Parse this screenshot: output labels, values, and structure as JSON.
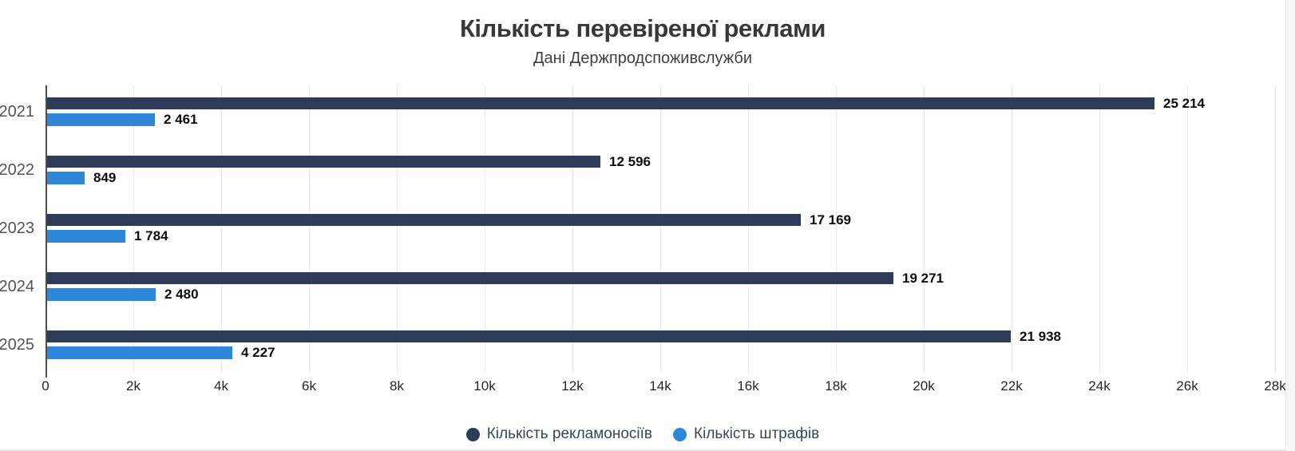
{
  "header": {
    "title": "Кількість перевіреної реклами",
    "subtitle": "Дані Держпродспоживслужби"
  },
  "chart_data": {
    "type": "bar",
    "orientation": "horizontal",
    "title": "Кількість перевіреної реклами",
    "subtitle": "Дані Держпродспоживслужби",
    "categories": [
      "2021",
      "2022",
      "2023",
      "2024",
      "2025"
    ],
    "series": [
      {
        "name": "Кількість рекламоносіїв",
        "color": "#2e3c59",
        "values": [
          25214,
          12596,
          17169,
          19271,
          21938
        ],
        "value_labels": [
          "25 214",
          "12 596",
          "17 169",
          "19 271",
          "21 938"
        ]
      },
      {
        "name": "Кількість штрафів",
        "color": "#2f87da",
        "values": [
          2461,
          849,
          1784,
          2480,
          4227
        ],
        "value_labels": [
          "2 461",
          "849",
          "1 784",
          "2 480",
          "4 227"
        ]
      }
    ],
    "xlim": [
      0,
      28000
    ],
    "x_tick_interval": 2000,
    "x_tick_labels": [
      "0",
      "2k",
      "4k",
      "6k",
      "8k",
      "10k",
      "12k",
      "14k",
      "16k",
      "18k",
      "20k",
      "22k",
      "24k",
      "26k",
      "28k"
    ],
    "grid": "vertical",
    "legend_position": "bottom"
  },
  "colors": {
    "series1": "#2e3c59",
    "series2": "#2f87da",
    "gridline": "#e8e8e8",
    "axis": "#4f4f4f",
    "title_text": "#383838",
    "value_label_text": "#0d0d0d",
    "tick_label_text": "#262626",
    "category_label_text": "#4f5459",
    "legend_text": "#3a4553"
  }
}
